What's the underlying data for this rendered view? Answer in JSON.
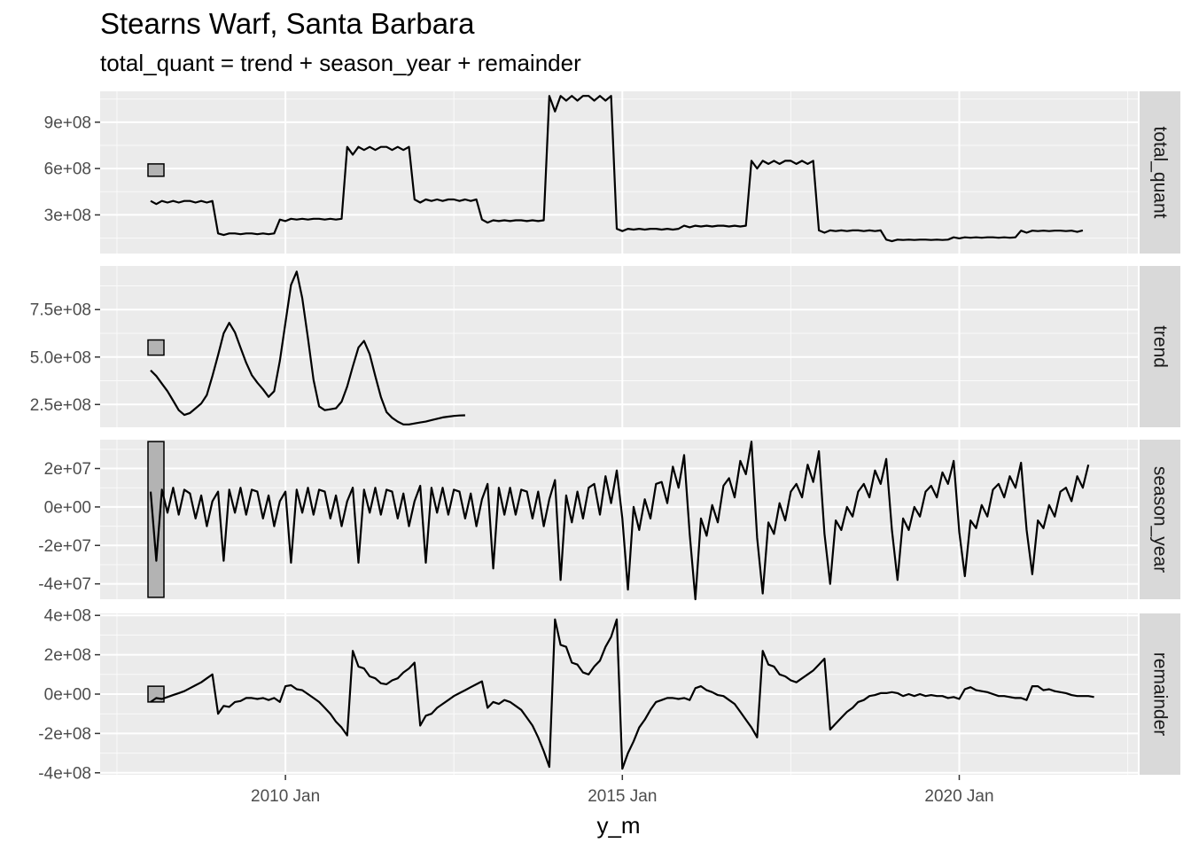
{
  "chart_data": {
    "type": "line",
    "title": "Stearns Warf, Santa Barbara",
    "subtitle": "total_quant = trend + season_year + remainder",
    "xlabel": "y_m",
    "x_ticks": [
      {
        "value": 2010.0,
        "label": "2010 Jan"
      },
      {
        "value": 2015.0,
        "label": "2015 Jan"
      },
      {
        "value": 2020.0,
        "label": "2020 Jan"
      }
    ],
    "x_range": [
      2007.25,
      2022.65
    ],
    "x_start": 2008.0,
    "x_step": 0.0833333,
    "panel_bg": "#ebebeb",
    "strip_bg": "#d9d9d9",
    "scale_bar_fill": "#b3b3b3",
    "panels": [
      {
        "name": "total_quant",
        "ylim": [
          50000000,
          1100000000
        ],
        "yticks": [
          {
            "value": 300000000,
            "label": "3e+08"
          },
          {
            "value": 600000000,
            "label": "6e+08"
          },
          {
            "value": 900000000,
            "label": "9e+08"
          }
        ],
        "scale_bar": [
          550000000,
          630000000
        ],
        "values": [
          390000000,
          370000000,
          390000000,
          380000000,
          390000000,
          380000000,
          390000000,
          390000000,
          380000000,
          390000000,
          380000000,
          390000000,
          180000000,
          170000000,
          180000000,
          180000000,
          175000000,
          180000000,
          180000000,
          175000000,
          180000000,
          175000000,
          180000000,
          270000000,
          260000000,
          275000000,
          270000000,
          275000000,
          270000000,
          275000000,
          275000000,
          270000000,
          275000000,
          270000000,
          275000000,
          740000000,
          690000000,
          740000000,
          720000000,
          740000000,
          720000000,
          740000000,
          740000000,
          720000000,
          740000000,
          720000000,
          740000000,
          400000000,
          380000000,
          400000000,
          390000000,
          400000000,
          390000000,
          400000000,
          400000000,
          390000000,
          400000000,
          390000000,
          400000000,
          270000000,
          250000000,
          265000000,
          260000000,
          265000000,
          260000000,
          265000000,
          265000000,
          260000000,
          265000000,
          260000000,
          265000000,
          1070000000,
          970000000,
          1070000000,
          1040000000,
          1070000000,
          1040000000,
          1070000000,
          1070000000,
          1040000000,
          1070000000,
          1040000000,
          1070000000,
          210000000,
          195000000,
          210000000,
          205000000,
          210000000,
          205000000,
          210000000,
          210000000,
          205000000,
          210000000,
          205000000,
          210000000,
          230000000,
          220000000,
          230000000,
          225000000,
          230000000,
          225000000,
          230000000,
          230000000,
          225000000,
          230000000,
          225000000,
          230000000,
          650000000,
          600000000,
          650000000,
          630000000,
          650000000,
          630000000,
          650000000,
          650000000,
          630000000,
          650000000,
          630000000,
          650000000,
          200000000,
          185000000,
          200000000,
          195000000,
          200000000,
          195000000,
          200000000,
          200000000,
          195000000,
          200000000,
          195000000,
          200000000,
          140000000,
          130000000,
          140000000,
          138000000,
          140000000,
          138000000,
          140000000,
          140000000,
          138000000,
          140000000,
          138000000,
          140000000,
          155000000,
          148000000,
          155000000,
          152000000,
          155000000,
          152000000,
          155000000,
          155000000,
          152000000,
          155000000,
          152000000,
          155000000,
          198000000,
          185000000,
          198000000,
          195000000,
          198000000,
          195000000,
          198000000,
          198000000,
          195000000,
          198000000,
          190000000,
          200000000
        ]
      },
      {
        "name": "trend",
        "ylim": [
          130000000,
          980000000
        ],
        "yticks": [
          {
            "value": 250000000,
            "label": "2.5e+08"
          },
          {
            "value": 500000000,
            "label": "5.0e+08"
          },
          {
            "value": 750000000,
            "label": "7.5e+08"
          }
        ],
        "scale_bar": [
          510000000,
          590000000
        ],
        "values": [
          430000000,
          400000000,
          360000000,
          320000000,
          270000000,
          220000000,
          195000000,
          205000000,
          230000000,
          255000000,
          300000000,
          400000000,
          510000000,
          625000000,
          680000000,
          630000000,
          550000000,
          470000000,
          405000000,
          365000000,
          330000000,
          290000000,
          320000000,
          480000000,
          680000000,
          880000000,
          950000000,
          810000000,
          600000000,
          380000000,
          240000000,
          220000000,
          225000000,
          230000000,
          265000000,
          345000000,
          450000000,
          550000000,
          585000000,
          515000000,
          400000000,
          290000000,
          210000000,
          180000000,
          160000000,
          145000000,
          145000000,
          150000000,
          155000000,
          160000000,
          168000000,
          175000000,
          182000000,
          186000000,
          190000000,
          192000000,
          193000000
        ]
      },
      {
        "name": "season_year",
        "ylim": [
          -48000000,
          35000000
        ],
        "yticks": [
          {
            "value": -40000000,
            "label": "-4e+07"
          },
          {
            "value": -20000000,
            "label": "-2e+07"
          },
          {
            "value": 0,
            "label": "0e+00"
          },
          {
            "value": 20000000,
            "label": "2e+07"
          }
        ],
        "scale_bar": [
          -47000000,
          34000000
        ],
        "values": [
          8000000,
          -28000000,
          9000000,
          -3000000,
          10000000,
          -4000000,
          9000000,
          7000000,
          -6000000,
          6000000,
          -10000000,
          3000000,
          8000000,
          -28000000,
          9000000,
          -3000000,
          10000000,
          -4000000,
          9000000,
          8000000,
          -6000000,
          6000000,
          -10000000,
          3000000,
          8000000,
          -29000000,
          9000000,
          -3000000,
          10000000,
          -4000000,
          9000000,
          8000000,
          -6000000,
          6000000,
          -10000000,
          3000000,
          10000000,
          -29000000,
          9000000,
          -3000000,
          10000000,
          -4000000,
          9000000,
          8000000,
          -6000000,
          7000000,
          -10000000,
          3000000,
          11000000,
          -29000000,
          10000000,
          -3000000,
          10000000,
          -4000000,
          9000000,
          8000000,
          -6000000,
          7000000,
          -10000000,
          4000000,
          12000000,
          -32000000,
          10000000,
          -4000000,
          10000000,
          -4000000,
          9000000,
          8000000,
          -6000000,
          8000000,
          -10000000,
          4000000,
          14000000,
          -38000000,
          6000000,
          -8000000,
          8000000,
          -6000000,
          10000000,
          12000000,
          -4000000,
          16000000,
          2000000,
          19000000,
          -6000000,
          -43000000,
          0,
          -12000000,
          4000000,
          -6000000,
          12000000,
          13000000,
          2000000,
          21000000,
          10000000,
          27000000,
          -14000000,
          -48000000,
          -6000000,
          -15000000,
          1000000,
          -8000000,
          11000000,
          15000000,
          5000000,
          24000000,
          17000000,
          34000000,
          -16000000,
          -45000000,
          -8000000,
          -14000000,
          2000000,
          -7000000,
          8000000,
          12000000,
          5000000,
          22000000,
          13000000,
          29000000,
          -14000000,
          -40000000,
          -7000000,
          -12000000,
          0,
          -5000000,
          8000000,
          12000000,
          5000000,
          19000000,
          12000000,
          25000000,
          -12000000,
          -38000000,
          -6000000,
          -12000000,
          0,
          -5000000,
          8000000,
          11000000,
          5000000,
          18000000,
          12000000,
          24000000,
          -13000000,
          -36000000,
          -7000000,
          -11000000,
          1000000,
          -5000000,
          9000000,
          12000000,
          5000000,
          16000000,
          10000000,
          23000000,
          -12000000,
          -35000000,
          -7000000,
          -11000000,
          1000000,
          -5000000,
          8000000,
          10000000,
          3000000,
          16000000,
          10000000,
          22000000
        ]
      },
      {
        "name": "remainder",
        "ylim": [
          -410000000,
          410000000
        ],
        "yticks": [
          {
            "value": -400000000,
            "label": "-4e+08"
          },
          {
            "value": -200000000,
            "label": "-2e+08"
          },
          {
            "value": 0,
            "label": "0e+00"
          },
          {
            "value": 200000000,
            "label": "2e+08"
          },
          {
            "value": 400000000,
            "label": "4e+08"
          }
        ],
        "scale_bar": [
          -40000000,
          40000000
        ],
        "values": [
          -40000000,
          -20000000,
          -25000000,
          -15000000,
          -5000000,
          5000000,
          15000000,
          30000000,
          45000000,
          60000000,
          80000000,
          100000000,
          -100000000,
          -60000000,
          -65000000,
          -40000000,
          -35000000,
          -20000000,
          -20000000,
          -25000000,
          -20000000,
          -30000000,
          -20000000,
          -40000000,
          40000000,
          45000000,
          25000000,
          20000000,
          0,
          -20000000,
          -40000000,
          -70000000,
          -100000000,
          -140000000,
          -170000000,
          -210000000,
          220000000,
          140000000,
          130000000,
          90000000,
          80000000,
          55000000,
          50000000,
          70000000,
          80000000,
          110000000,
          130000000,
          160000000,
          -160000000,
          -110000000,
          -100000000,
          -70000000,
          -50000000,
          -30000000,
          -10000000,
          5000000,
          20000000,
          35000000,
          50000000,
          65000000,
          -70000000,
          -40000000,
          -50000000,
          -30000000,
          -40000000,
          -60000000,
          -80000000,
          -120000000,
          -160000000,
          -220000000,
          -290000000,
          -370000000,
          380000000,
          250000000,
          240000000,
          160000000,
          150000000,
          110000000,
          100000000,
          140000000,
          170000000,
          240000000,
          290000000,
          380000000,
          -380000000,
          -300000000,
          -240000000,
          -170000000,
          -130000000,
          -80000000,
          -40000000,
          -30000000,
          -20000000,
          -20000000,
          -25000000,
          -20000000,
          -30000000,
          30000000,
          40000000,
          20000000,
          10000000,
          -5000000,
          -10000000,
          -30000000,
          -50000000,
          -90000000,
          -130000000,
          -170000000,
          -220000000,
          220000000,
          150000000,
          140000000,
          100000000,
          90000000,
          70000000,
          60000000,
          80000000,
          100000000,
          120000000,
          150000000,
          180000000,
          -180000000,
          -150000000,
          -120000000,
          -90000000,
          -70000000,
          -40000000,
          -30000000,
          -10000000,
          -5000000,
          5000000,
          5000000,
          10000000,
          5000000,
          -10000000,
          0,
          -10000000,
          0,
          -10000000,
          -5000000,
          -10000000,
          -10000000,
          -20000000,
          -15000000,
          -25000000,
          25000000,
          35000000,
          20000000,
          15000000,
          10000000,
          0,
          -10000000,
          -10000000,
          -15000000,
          -20000000,
          -20000000,
          -30000000,
          40000000,
          40000000,
          20000000,
          25000000,
          15000000,
          10000000,
          5000000,
          -5000000,
          -10000000,
          -10000000,
          -10000000,
          -15000000
        ]
      }
    ]
  }
}
